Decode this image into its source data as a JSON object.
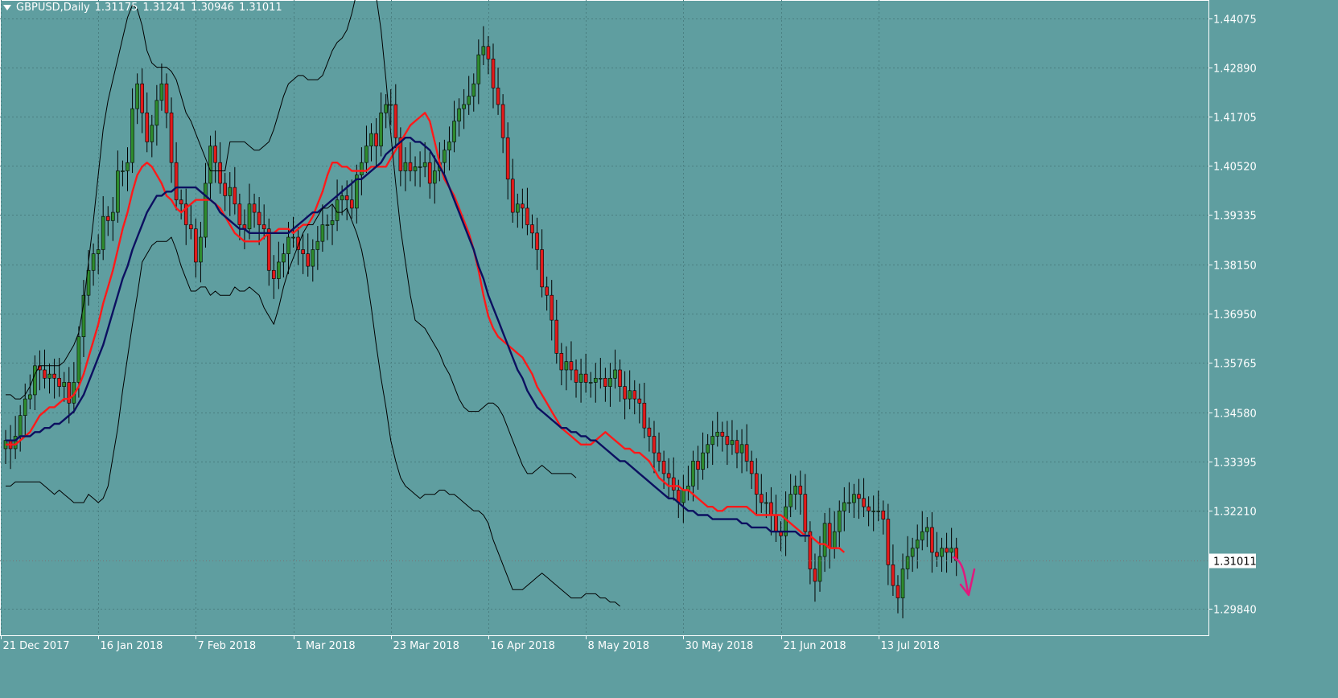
{
  "window": {
    "symbol_timeframe": "GBPUSD,Daily",
    "ohlc": [
      "1.31175",
      "1.31241",
      "1.30946",
      "1.31011"
    ]
  },
  "colors": {
    "background": "#5f9ea0",
    "bull": "#2e8b2e",
    "bear": "#e11b1b",
    "fast_ma": "#ff1a1a",
    "slow_ma": "#0c1060",
    "bands": "#000000",
    "arrow": "#e0197d",
    "axis": "#ffffff"
  },
  "chart_data": {
    "type": "candlestick",
    "title": "",
    "ylim": [
      1.2925,
      1.4475
    ],
    "y_ticks": [
      "1.44075",
      "1.42890",
      "1.41705",
      "1.40520",
      "1.39335",
      "1.38150",
      "1.36950",
      "1.35765",
      "1.34580",
      "1.33395",
      "1.32210",
      "1.29840"
    ],
    "x_ticks": [
      "21 Dec 2017",
      "16 Jan 2018",
      "7 Feb 2018",
      "1 Mar 2018",
      "23 Mar 2018",
      "16 Apr 2018",
      "8 May 2018",
      "30 May 2018",
      "21 Jun 2018",
      "13 Jul 2018"
    ],
    "x_tick_bar_index": [
      0,
      20,
      40,
      60,
      80,
      100,
      120,
      140,
      160,
      180
    ],
    "current_price": "1.31011",
    "close": [
      1.339,
      1.337,
      1.34,
      1.345,
      1.349,
      1.35,
      1.357,
      1.356,
      1.354,
      1.355,
      1.354,
      1.352,
      1.353,
      1.348,
      1.353,
      1.364,
      1.374,
      1.38,
      1.384,
      1.385,
      1.393,
      1.392,
      1.394,
      1.404,
      1.404,
      1.406,
      1.419,
      1.425,
      1.418,
      1.411,
      1.415,
      1.421,
      1.425,
      1.418,
      1.406,
      1.397,
      1.396,
      1.391,
      1.39,
      1.382,
      1.388,
      1.401,
      1.41,
      1.406,
      1.401,
      1.398,
      1.4,
      1.396,
      1.391,
      1.39,
      1.396,
      1.394,
      1.391,
      1.39,
      1.38,
      1.378,
      1.382,
      1.384,
      1.388,
      1.388,
      1.385,
      1.384,
      1.381,
      1.385,
      1.387,
      1.391,
      1.391,
      1.392,
      1.397,
      1.398,
      1.397,
      1.395,
      1.403,
      1.406,
      1.41,
      1.413,
      1.41,
      1.418,
      1.42,
      1.42,
      1.412,
      1.404,
      1.406,
      1.404,
      1.405,
      1.405,
      1.406,
      1.401,
      1.404,
      1.406,
      1.409,
      1.411,
      1.416,
      1.419,
      1.42,
      1.422,
      1.425,
      1.432,
      1.434,
      1.431,
      1.424,
      1.42,
      1.412,
      1.402,
      1.394,
      1.396,
      1.395,
      1.391,
      1.389,
      1.385,
      1.376,
      1.374,
      1.368,
      1.36,
      1.356,
      1.358,
      1.356,
      1.353,
      1.355,
      1.353,
      1.353,
      1.354,
      1.354,
      1.352,
      1.354,
      1.356,
      1.352,
      1.349,
      1.351,
      1.349,
      1.348,
      1.342,
      1.34,
      1.336,
      1.334,
      1.331,
      1.33,
      1.327,
      1.324,
      1.327,
      1.328,
      1.334,
      1.332,
      1.336,
      1.338,
      1.34,
      1.341,
      1.34,
      1.338,
      1.339,
      1.336,
      1.338,
      1.334,
      1.331,
      1.326,
      1.324,
      1.324,
      1.321,
      1.317,
      1.316,
      1.323,
      1.326,
      1.328,
      1.326,
      1.317,
      1.308,
      1.305,
      1.311,
      1.319,
      1.313,
      1.317,
      1.322,
      1.324,
      1.324,
      1.326,
      1.325,
      1.323,
      1.322,
      1.322,
      1.322,
      1.32,
      1.309,
      1.304,
      1.301,
      1.308,
      1.311,
      1.313,
      1.315,
      1.317,
      1.318,
      1.312,
      1.311,
      1.313,
      1.312,
      1.313,
      1.31
    ],
    "open": [
      1.337,
      1.339,
      1.337,
      1.34,
      1.345,
      1.349,
      1.35,
      1.357,
      1.356,
      1.354,
      1.355,
      1.354,
      1.352,
      1.353,
      1.348,
      1.353,
      1.364,
      1.374,
      1.38,
      1.384,
      1.385,
      1.393,
      1.392,
      1.394,
      1.404,
      1.404,
      1.406,
      1.419,
      1.425,
      1.418,
      1.411,
      1.415,
      1.421,
      1.425,
      1.418,
      1.406,
      1.397,
      1.396,
      1.391,
      1.39,
      1.382,
      1.388,
      1.401,
      1.41,
      1.406,
      1.401,
      1.398,
      1.4,
      1.396,
      1.391,
      1.39,
      1.396,
      1.394,
      1.391,
      1.39,
      1.38,
      1.378,
      1.382,
      1.384,
      1.388,
      1.388,
      1.385,
      1.384,
      1.381,
      1.385,
      1.387,
      1.391,
      1.391,
      1.392,
      1.397,
      1.398,
      1.397,
      1.395,
      1.403,
      1.406,
      1.41,
      1.413,
      1.41,
      1.418,
      1.42,
      1.42,
      1.412,
      1.404,
      1.406,
      1.404,
      1.405,
      1.405,
      1.406,
      1.401,
      1.404,
      1.406,
      1.409,
      1.411,
      1.416,
      1.419,
      1.42,
      1.422,
      1.425,
      1.432,
      1.434,
      1.431,
      1.424,
      1.42,
      1.412,
      1.402,
      1.394,
      1.396,
      1.395,
      1.391,
      1.389,
      1.385,
      1.376,
      1.374,
      1.368,
      1.36,
      1.356,
      1.358,
      1.356,
      1.353,
      1.355,
      1.353,
      1.353,
      1.354,
      1.354,
      1.352,
      1.354,
      1.356,
      1.352,
      1.349,
      1.351,
      1.349,
      1.348,
      1.342,
      1.34,
      1.336,
      1.334,
      1.331,
      1.33,
      1.327,
      1.324,
      1.327,
      1.328,
      1.334,
      1.332,
      1.336,
      1.338,
      1.34,
      1.341,
      1.34,
      1.338,
      1.339,
      1.336,
      1.338,
      1.334,
      1.331,
      1.326,
      1.324,
      1.324,
      1.321,
      1.317,
      1.316,
      1.323,
      1.326,
      1.328,
      1.326,
      1.317,
      1.308,
      1.305,
      1.311,
      1.319,
      1.313,
      1.317,
      1.322,
      1.324,
      1.324,
      1.326,
      1.325,
      1.323,
      1.322,
      1.322,
      1.322,
      1.32,
      1.309,
      1.304,
      1.301,
      1.308,
      1.311,
      1.313,
      1.315,
      1.317,
      1.318,
      1.312,
      1.311,
      1.313,
      1.312,
      1.313
    ],
    "series": [
      {
        "name": "",
        "role": "fast moving average",
        "color": "#ff1a1a",
        "values": [
          1.338,
          1.338,
          1.338,
          1.339,
          1.34,
          1.341,
          1.343,
          1.345,
          1.346,
          1.347,
          1.347,
          1.348,
          1.349,
          1.349,
          1.35,
          1.352,
          1.355,
          1.359,
          1.363,
          1.367,
          1.372,
          1.376,
          1.38,
          1.385,
          1.39,
          1.394,
          1.399,
          1.403,
          1.405,
          1.406,
          1.405,
          1.403,
          1.401,
          1.398,
          1.397,
          1.395,
          1.394,
          1.395,
          1.396,
          1.397,
          1.397,
          1.397,
          1.397,
          1.396,
          1.395,
          1.393,
          1.391,
          1.389,
          1.388,
          1.387,
          1.387,
          1.387,
          1.387,
          1.388,
          1.389,
          1.389,
          1.39,
          1.39,
          1.39,
          1.389,
          1.39,
          1.391,
          1.391,
          1.393,
          1.396,
          1.399,
          1.403,
          1.406,
          1.406,
          1.405,
          1.405,
          1.404,
          1.404,
          1.404,
          1.404,
          1.405,
          1.405,
          1.405,
          1.405,
          1.407,
          1.409,
          1.411,
          1.413,
          1.415,
          1.416,
          1.417,
          1.418,
          1.416,
          1.411,
          1.406,
          1.402,
          1.4,
          1.398,
          1.395,
          1.392,
          1.389,
          1.385,
          1.38,
          1.374,
          1.369,
          1.366,
          1.364,
          1.363,
          1.362,
          1.361,
          1.36,
          1.359,
          1.357,
          1.355,
          1.352,
          1.35,
          1.348,
          1.346,
          1.344,
          1.342,
          1.341,
          1.34,
          1.339,
          1.338,
          1.338,
          1.338,
          1.339,
          1.34,
          1.341,
          1.34,
          1.339,
          1.338,
          1.337,
          1.337,
          1.336,
          1.336,
          1.335,
          1.334,
          1.332,
          1.33,
          1.329,
          1.328,
          1.328,
          1.328,
          1.327,
          1.327,
          1.326,
          1.325,
          1.324,
          1.323,
          1.323,
          1.322,
          1.322,
          1.323,
          1.323,
          1.323,
          1.323,
          1.323,
          1.322,
          1.321,
          1.321,
          1.321,
          1.321,
          1.321,
          1.321,
          1.32,
          1.319,
          1.318,
          1.317,
          1.316,
          1.316,
          1.315,
          1.314,
          1.314,
          1.313,
          1.313,
          1.313,
          1.312
        ]
      },
      {
        "name": "",
        "role": "slow moving average",
        "color": "#0c1060",
        "values": [
          1.339,
          1.339,
          1.339,
          1.34,
          1.34,
          1.34,
          1.341,
          1.341,
          1.342,
          1.342,
          1.343,
          1.343,
          1.344,
          1.345,
          1.346,
          1.348,
          1.35,
          1.353,
          1.356,
          1.359,
          1.362,
          1.366,
          1.37,
          1.374,
          1.378,
          1.381,
          1.385,
          1.388,
          1.391,
          1.394,
          1.396,
          1.398,
          1.398,
          1.399,
          1.399,
          1.4,
          1.4,
          1.4,
          1.4,
          1.4,
          1.399,
          1.398,
          1.397,
          1.396,
          1.394,
          1.393,
          1.392,
          1.391,
          1.39,
          1.39,
          1.389,
          1.389,
          1.389,
          1.389,
          1.389,
          1.389,
          1.389,
          1.389,
          1.389,
          1.39,
          1.391,
          1.392,
          1.393,
          1.394,
          1.394,
          1.395,
          1.396,
          1.397,
          1.398,
          1.399,
          1.4,
          1.401,
          1.402,
          1.402,
          1.403,
          1.404,
          1.405,
          1.406,
          1.408,
          1.409,
          1.41,
          1.411,
          1.412,
          1.412,
          1.411,
          1.411,
          1.41,
          1.409,
          1.407,
          1.405,
          1.403,
          1.4,
          1.397,
          1.394,
          1.391,
          1.388,
          1.385,
          1.381,
          1.378,
          1.374,
          1.371,
          1.368,
          1.365,
          1.362,
          1.359,
          1.356,
          1.354,
          1.351,
          1.349,
          1.347,
          1.346,
          1.345,
          1.344,
          1.343,
          1.342,
          1.342,
          1.341,
          1.341,
          1.34,
          1.34,
          1.339,
          1.339,
          1.338,
          1.337,
          1.336,
          1.335,
          1.334,
          1.334,
          1.333,
          1.332,
          1.331,
          1.33,
          1.329,
          1.328,
          1.327,
          1.326,
          1.325,
          1.325,
          1.324,
          1.323,
          1.322,
          1.322,
          1.321,
          1.321,
          1.321,
          1.32,
          1.32,
          1.32,
          1.32,
          1.32,
          1.32,
          1.319,
          1.319,
          1.318,
          1.318,
          1.318,
          1.318,
          1.317,
          1.317,
          1.317,
          1.317,
          1.317,
          1.317,
          1.316,
          1.316,
          1.316
        ]
      },
      {
        "name": "",
        "role": "upper band",
        "color": "#000000",
        "values": [
          1.35,
          1.35,
          1.349,
          1.349,
          1.35,
          1.352,
          1.355,
          1.357,
          1.357,
          1.357,
          1.357,
          1.357,
          1.358,
          1.36,
          1.362,
          1.365,
          1.372,
          1.382,
          1.392,
          1.403,
          1.414,
          1.421,
          1.426,
          1.431,
          1.436,
          1.441,
          1.444,
          1.443,
          1.439,
          1.433,
          1.43,
          1.429,
          1.429,
          1.429,
          1.428,
          1.426,
          1.422,
          1.418,
          1.416,
          1.413,
          1.41,
          1.407,
          1.404,
          1.404,
          1.404,
          1.404,
          1.411,
          1.411,
          1.411,
          1.411,
          1.41,
          1.409,
          1.409,
          1.41,
          1.411,
          1.414,
          1.418,
          1.422,
          1.425,
          1.426,
          1.427,
          1.427,
          1.426,
          1.426,
          1.426,
          1.427,
          1.43,
          1.433,
          1.435,
          1.436,
          1.438,
          1.442,
          1.447,
          1.45,
          1.452,
          1.451,
          1.446,
          1.438,
          1.426,
          1.413,
          1.401,
          1.39,
          1.382,
          1.374,
          1.368,
          1.367,
          1.366,
          1.364,
          1.362,
          1.36,
          1.357,
          1.355,
          1.352,
          1.349,
          1.347,
          1.346,
          1.346,
          1.346,
          1.347,
          1.348,
          1.348,
          1.347,
          1.345,
          1.342,
          1.339,
          1.336,
          1.333,
          1.331,
          1.331,
          1.332,
          1.333,
          1.332,
          1.331,
          1.331,
          1.331,
          1.331,
          1.331,
          1.33
        ]
      },
      {
        "name": "",
        "role": "lower band",
        "color": "#000000",
        "values": [
          1.328,
          1.328,
          1.329,
          1.329,
          1.329,
          1.329,
          1.329,
          1.329,
          1.328,
          1.327,
          1.326,
          1.327,
          1.326,
          1.325,
          1.324,
          1.324,
          1.324,
          1.326,
          1.325,
          1.324,
          1.325,
          1.328,
          1.335,
          1.342,
          1.351,
          1.359,
          1.367,
          1.374,
          1.382,
          1.384,
          1.386,
          1.387,
          1.387,
          1.387,
          1.388,
          1.385,
          1.381,
          1.378,
          1.375,
          1.375,
          1.376,
          1.376,
          1.374,
          1.375,
          1.374,
          1.374,
          1.374,
          1.376,
          1.375,
          1.375,
          1.376,
          1.375,
          1.374,
          1.371,
          1.369,
          1.367,
          1.371,
          1.376,
          1.38,
          1.383,
          1.386,
          1.389,
          1.391,
          1.391,
          1.393,
          1.395,
          1.395,
          1.396,
          1.394,
          1.394,
          1.395,
          1.392,
          1.389,
          1.385,
          1.379,
          1.371,
          1.362,
          1.354,
          1.347,
          1.339,
          1.334,
          1.33,
          1.328,
          1.327,
          1.326,
          1.325,
          1.326,
          1.326,
          1.326,
          1.327,
          1.327,
          1.326,
          1.326,
          1.325,
          1.324,
          1.323,
          1.322,
          1.322,
          1.321,
          1.319,
          1.315,
          1.312,
          1.309,
          1.306,
          1.303,
          1.303,
          1.303,
          1.304,
          1.305,
          1.306,
          1.307,
          1.306,
          1.305,
          1.304,
          1.303,
          1.302,
          1.301,
          1.301,
          1.301,
          1.302,
          1.302,
          1.302,
          1.301,
          1.301,
          1.3,
          1.3,
          1.299
        ]
      }
    ],
    "grid": true,
    "legend": "none"
  }
}
